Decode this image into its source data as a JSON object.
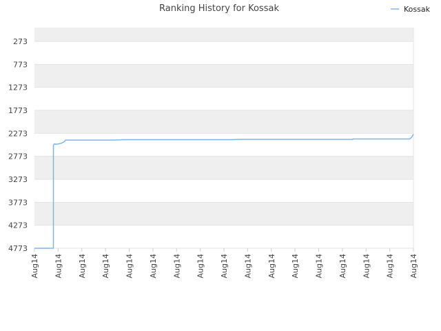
{
  "chart_data": {
    "type": "line",
    "title": "Ranking History for Kossak",
    "xlabel": "",
    "ylabel": "",
    "y_inverted": true,
    "ylim": [
      4773,
      -27
    ],
    "y_ticks": [
      "273",
      "773",
      "1273",
      "1773",
      "2273",
      "2773",
      "3273",
      "3773",
      "4273",
      "4773"
    ],
    "x_ticks": [
      "Aug14",
      "Aug14",
      "Aug14",
      "Aug14",
      "Aug14",
      "Aug14",
      "Aug14",
      "Aug14",
      "Aug14",
      "Aug14",
      "Aug14",
      "Aug14",
      "Aug14",
      "Aug14",
      "Aug14",
      "Aug14",
      "Aug14"
    ],
    "grid": "horizontal bands",
    "legend": {
      "position": "top-right",
      "entries": [
        "Kossak"
      ]
    },
    "series": [
      {
        "name": "Kossak",
        "color": "#7cb5ec",
        "x": [
          0,
          0.05,
          0.05,
          0.052,
          0.058,
          0.065,
          0.07,
          0.078,
          0.082,
          0.2,
          0.23,
          0.23,
          0.52,
          0.54,
          0.84,
          0.84,
          0.99,
          0.995,
          1.0
        ],
        "values": [
          4773,
          4773,
          2530,
          2505,
          2510,
          2500,
          2490,
          2460,
          2420,
          2420,
          2415,
          2410,
          2410,
          2405,
          2405,
          2395,
          2395,
          2360,
          2290
        ]
      }
    ]
  }
}
